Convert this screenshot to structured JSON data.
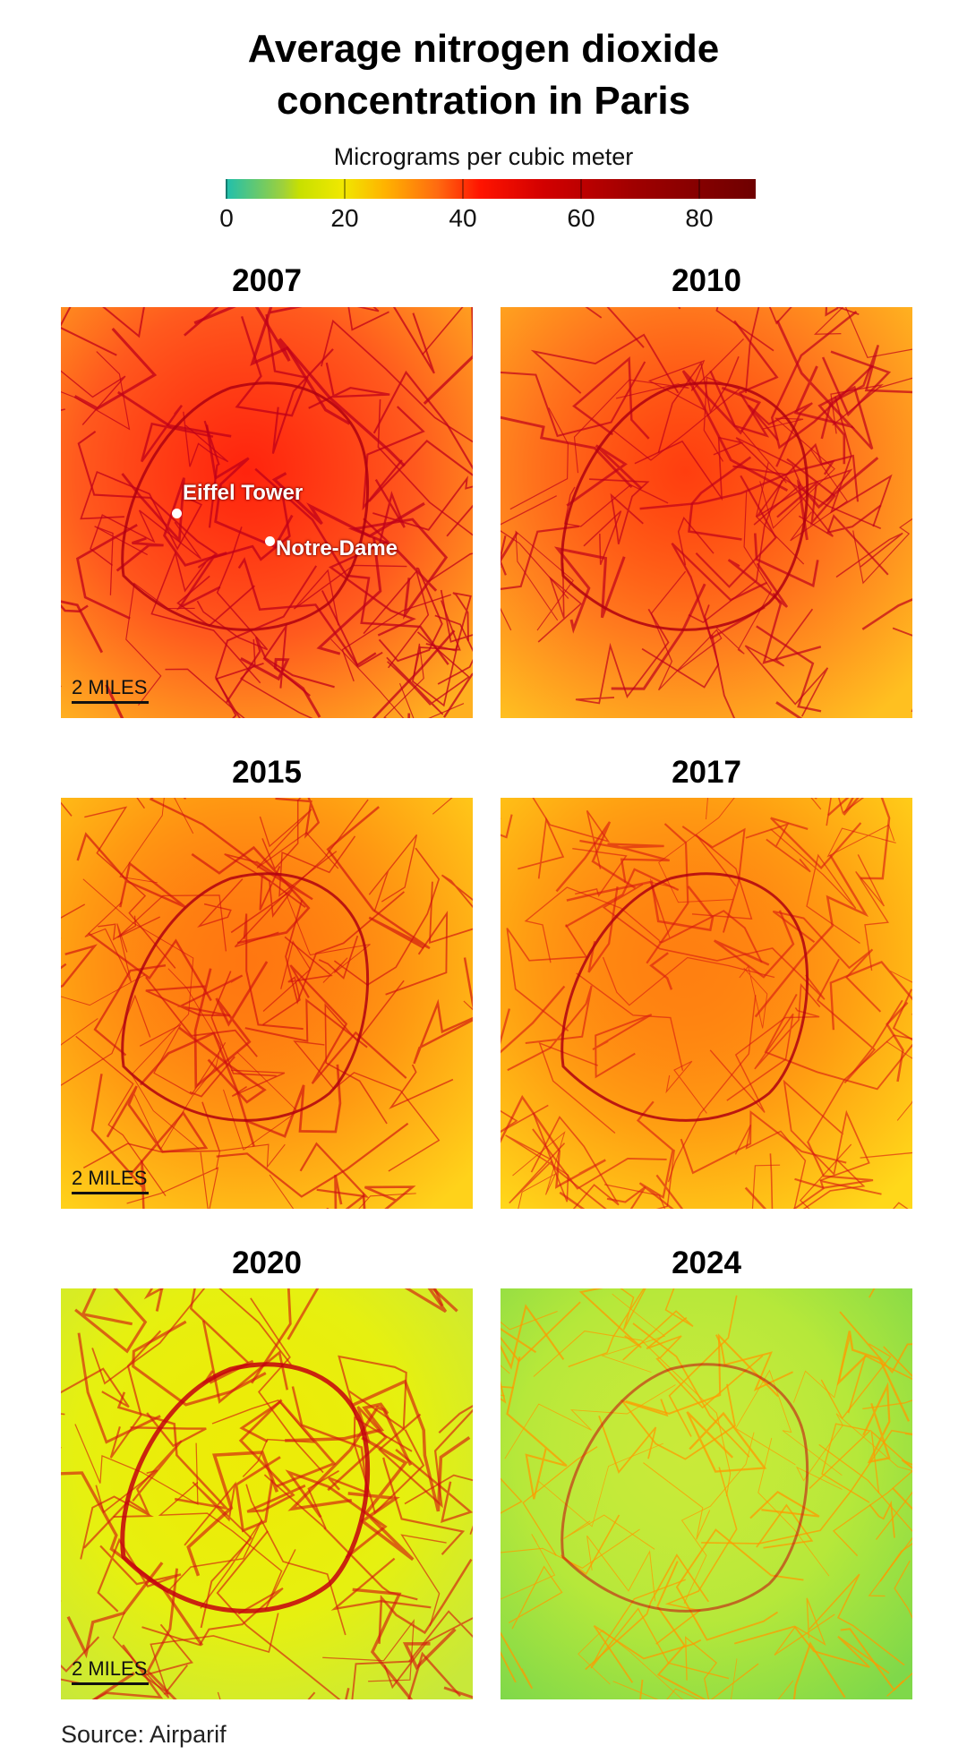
{
  "title_line1": "Average nitrogen dioxide",
  "title_line2": "concentration in Paris",
  "legend": {
    "label": "Micrograms per cubic meter",
    "ticks": [
      "0",
      "20",
      "40",
      "60",
      "80"
    ]
  },
  "panels": [
    {
      "year": "2007",
      "scale_label": "2 MILES",
      "landmarks": [
        "Eiffel Tower",
        "Notre-Dame"
      ]
    },
    {
      "year": "2010"
    },
    {
      "year": "2015",
      "scale_label": "2 MILES"
    },
    {
      "year": "2017"
    },
    {
      "year": "2020",
      "scale_label": "2 MILES"
    },
    {
      "year": "2024"
    }
  ],
  "source": "Source: Airparif",
  "colors": {
    "panel_2007": "#ff5a1e",
    "panel_2010": "#ff7a1e",
    "panel_2015": "#ff9a12",
    "panel_2017": "#ffa012",
    "panel_2020": "#e6f010",
    "panel_2024": "#b6e83a",
    "road_high": "#c0001a",
    "road_low": "#ff9a00"
  }
}
